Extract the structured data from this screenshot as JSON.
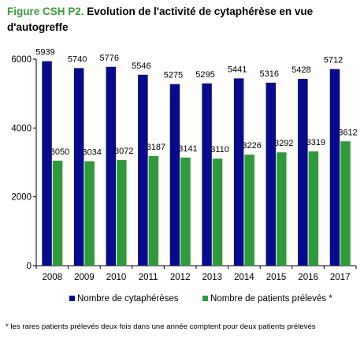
{
  "title": {
    "prefix": "Figure CSH P2.",
    "main": "Evolution de l'activité de cytaphérèse en vue d'autogreffe"
  },
  "footnote": "* les rares patients prélevés deux fois dans une année comptent pour deux patients prélevés",
  "colors": {
    "series_1": "#0a0a8c",
    "series_2": "#2e9a3a"
  },
  "chart_data": {
    "type": "bar",
    "categories": [
      "2008",
      "2009",
      "2010",
      "2011",
      "2012",
      "2013",
      "2014",
      "2015",
      "2016",
      "2017"
    ],
    "series": [
      {
        "name": "Nombre de cytaphérèses",
        "values": [
          5939,
          5740,
          5776,
          5546,
          5275,
          5295,
          5441,
          5316,
          5428,
          5712
        ]
      },
      {
        "name": "Nombre de patients prélevés *",
        "values": [
          3050,
          3034,
          3072,
          3187,
          3141,
          3110,
          3226,
          3292,
          3319,
          3612
        ]
      }
    ],
    "ylim": [
      0,
      6000
    ],
    "yticks": [
      0,
      2000,
      4000,
      6000
    ],
    "grid": false,
    "legend": "bottom"
  }
}
